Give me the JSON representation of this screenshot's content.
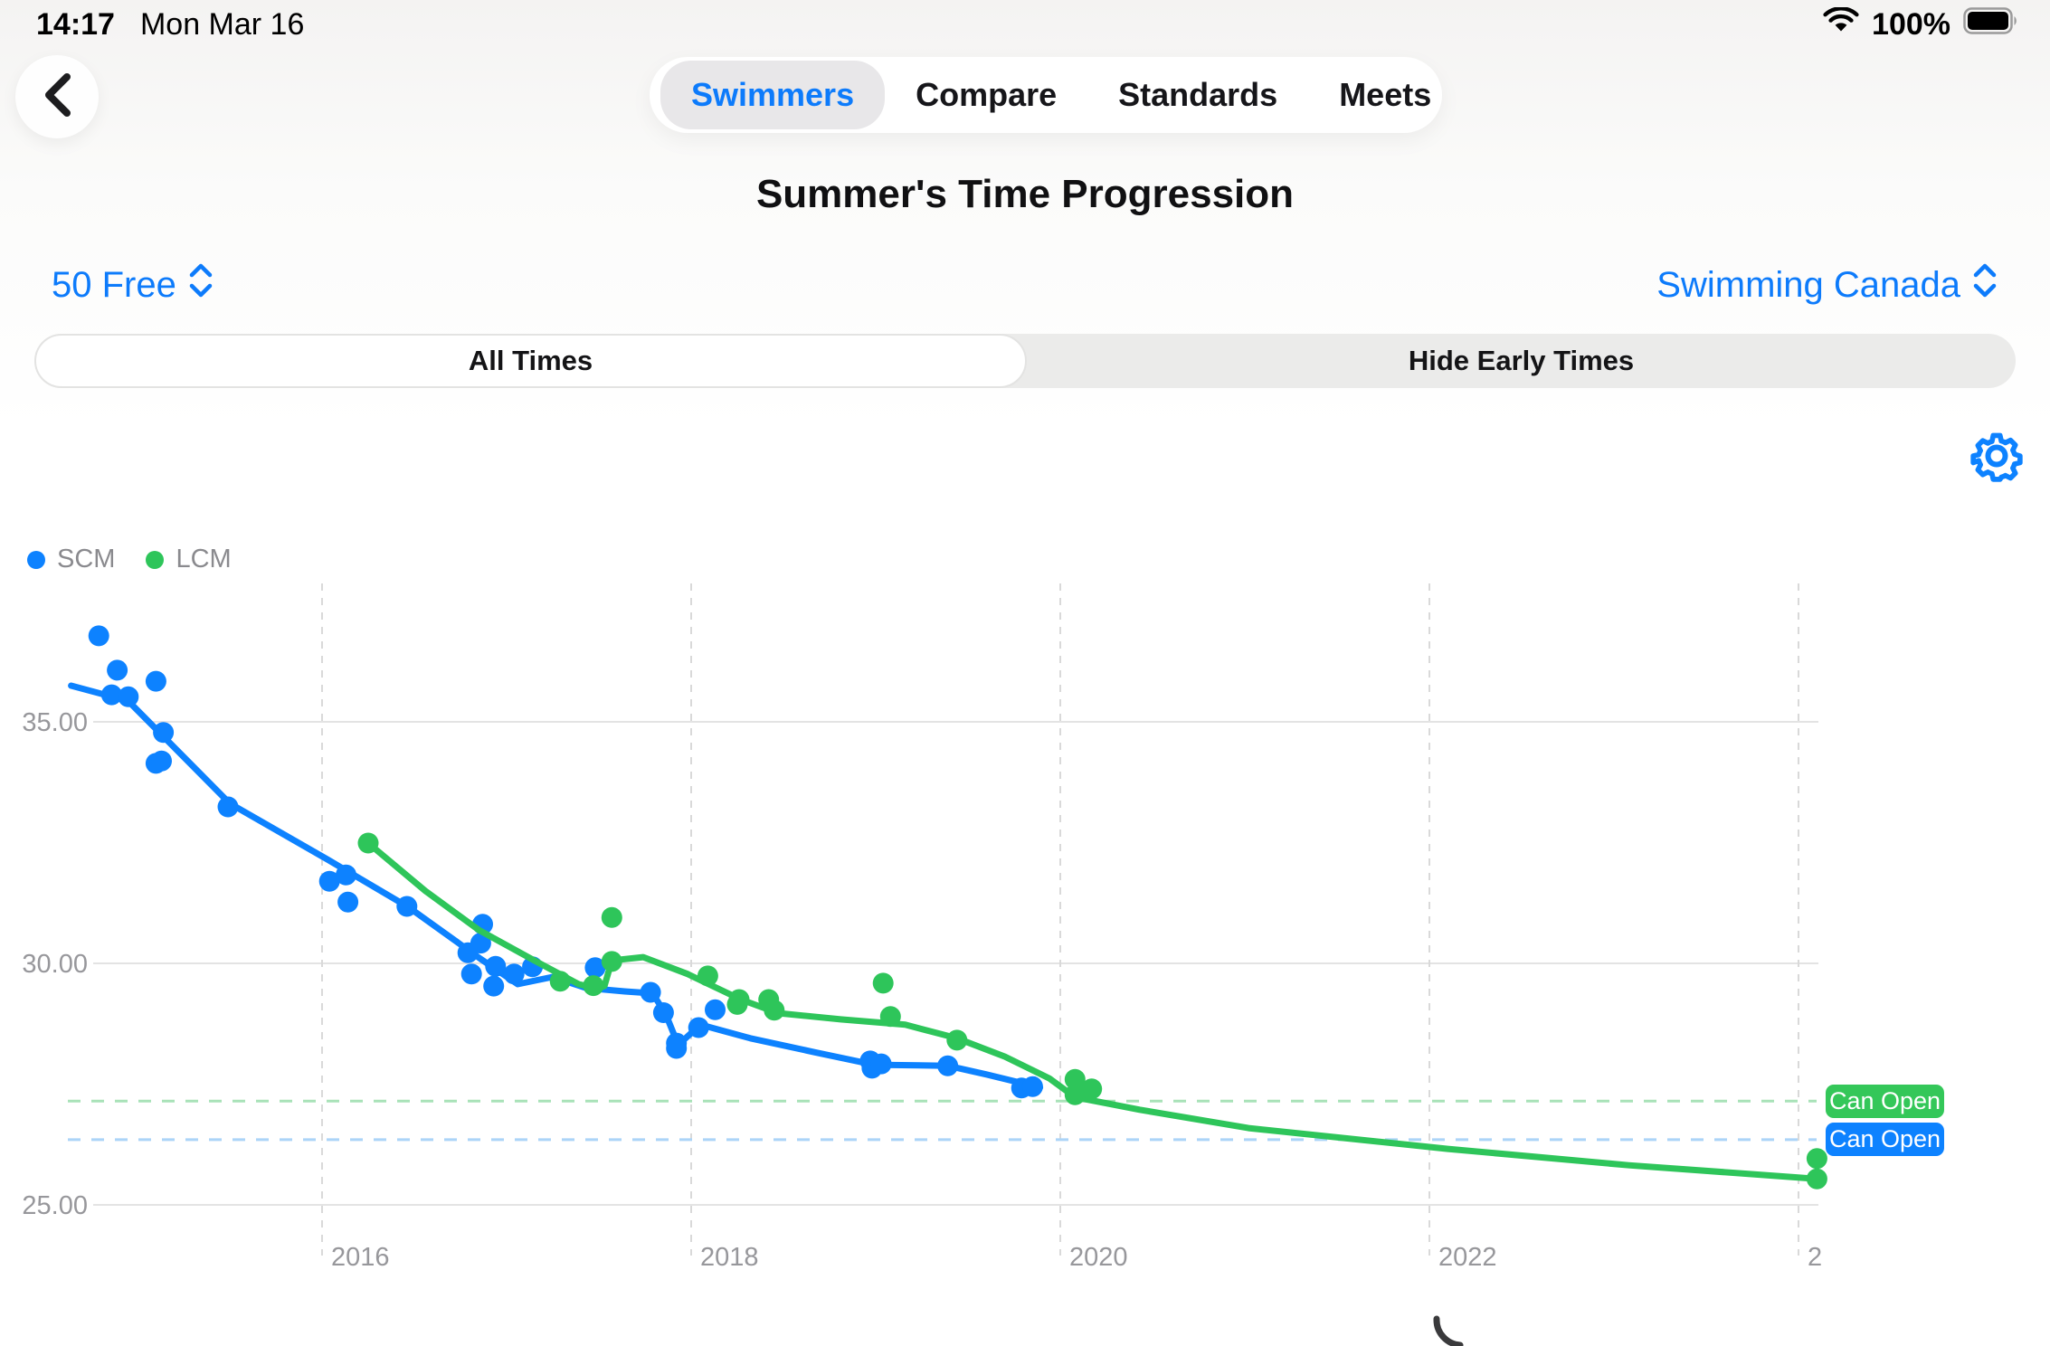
{
  "status_bar": {
    "time": "14:17",
    "date": "Mon Mar 16",
    "battery_percent": "100%"
  },
  "nav": {
    "tabs": [
      {
        "label": "Swimmers",
        "selected": true
      },
      {
        "label": "Compare",
        "selected": false
      },
      {
        "label": "Standards",
        "selected": false
      },
      {
        "label": "Meets",
        "selected": false
      }
    ]
  },
  "header": {
    "title": "Summer's Time Progression",
    "event_selector": "50 Free",
    "org_selector": "Swimming Canada"
  },
  "filter_toggle": {
    "options": [
      {
        "label": "All Times",
        "selected": true
      },
      {
        "label": "Hide Early Times",
        "selected": false
      }
    ]
  },
  "chart_data": {
    "type": "scatter",
    "title": "Summer's Time Progression",
    "legend_position": "top-left",
    "grid": true,
    "legend": [
      {
        "label": "SCM",
        "color": "#0d82ff"
      },
      {
        "label": "LCM",
        "color": "#2ec55a"
      }
    ],
    "x_ticks": {
      "values": [
        2016,
        2018,
        2020,
        2022,
        2024
      ],
      "labels": [
        "2016",
        "2018",
        "2020",
        "2022",
        "2"
      ]
    },
    "y_ticks": {
      "values": [
        35,
        30,
        25
      ],
      "labels": [
        "35.00",
        "30.00",
        "25.00"
      ]
    },
    "xlim": [
      2014.6,
      2024.35
    ],
    "ylim": [
      24.5,
      37.9
    ],
    "standards": [
      {
        "label": "Can Open",
        "value": 27.15,
        "badge_color": "#34c759",
        "line_color": "#a9e2b8"
      },
      {
        "label": "Can Open",
        "value": 26.35,
        "badge_color": "#0d82ff",
        "line_color": "#abd4f8"
      }
    ],
    "series": [
      {
        "name": "SCM",
        "color": "#0d82ff",
        "points": [
          [
            2014.79,
            36.78
          ],
          [
            2014.89,
            36.07
          ],
          [
            2014.86,
            35.56
          ],
          [
            2014.95,
            35.52
          ],
          [
            2015.1,
            35.84
          ],
          [
            2015.14,
            34.78
          ],
          [
            2015.1,
            34.14
          ],
          [
            2015.13,
            34.19
          ],
          [
            2015.49,
            33.24
          ],
          [
            2016.04,
            31.7
          ],
          [
            2016.13,
            31.83
          ],
          [
            2016.14,
            31.27
          ],
          [
            2016.46,
            31.18
          ],
          [
            2016.79,
            30.22
          ],
          [
            2016.81,
            29.78
          ],
          [
            2016.87,
            30.81
          ],
          [
            2016.86,
            30.42
          ],
          [
            2016.93,
            29.53
          ],
          [
            2016.94,
            29.94
          ],
          [
            2017.04,
            29.78
          ],
          [
            2017.14,
            29.93
          ],
          [
            2017.48,
            29.91
          ],
          [
            2017.78,
            29.4
          ],
          [
            2017.85,
            28.98
          ],
          [
            2017.92,
            28.35
          ],
          [
            2017.92,
            28.24
          ],
          [
            2018.04,
            28.67
          ],
          [
            2018.13,
            29.04
          ],
          [
            2018.97,
            27.98
          ],
          [
            2018.98,
            27.83
          ],
          [
            2019.03,
            27.92
          ],
          [
            2019.39,
            27.88
          ],
          [
            2019.79,
            27.42
          ],
          [
            2019.85,
            27.45
          ]
        ],
        "trend": [
          [
            2014.64,
            35.75
          ],
          [
            2014.95,
            35.43
          ],
          [
            2015.5,
            33.31
          ],
          [
            2016.03,
            32.15
          ],
          [
            2016.47,
            31.16
          ],
          [
            2016.86,
            30.09
          ],
          [
            2017.06,
            29.57
          ],
          [
            2017.25,
            29.72
          ],
          [
            2017.43,
            29.49
          ],
          [
            2017.64,
            29.42
          ],
          [
            2017.79,
            29.38
          ],
          [
            2017.86,
            28.97
          ],
          [
            2017.93,
            28.31
          ],
          [
            2018.05,
            28.73
          ],
          [
            2018.32,
            28.45
          ],
          [
            2018.67,
            28.16
          ],
          [
            2018.99,
            27.9
          ],
          [
            2019.39,
            27.88
          ],
          [
            2019.6,
            27.7
          ],
          [
            2019.89,
            27.43
          ]
        ]
      },
      {
        "name": "LCM",
        "color": "#2ec55a",
        "points": [
          [
            2016.25,
            32.49
          ],
          [
            2017.29,
            29.63
          ],
          [
            2017.47,
            29.54
          ],
          [
            2017.57,
            30.95
          ],
          [
            2017.57,
            30.04
          ],
          [
            2018.09,
            29.74
          ],
          [
            2018.26,
            29.25
          ],
          [
            2018.25,
            29.15
          ],
          [
            2018.42,
            29.25
          ],
          [
            2018.45,
            29.03
          ],
          [
            2019.04,
            29.59
          ],
          [
            2019.08,
            28.9
          ],
          [
            2019.44,
            28.41
          ],
          [
            2020.08,
            27.6
          ],
          [
            2020.17,
            27.4
          ],
          [
            2020.08,
            27.28
          ],
          [
            2024.1,
            25.96
          ],
          [
            2024.1,
            25.54
          ]
        ],
        "trend": [
          [
            2016.25,
            32.49
          ],
          [
            2016.56,
            31.5
          ],
          [
            2016.85,
            30.69
          ],
          [
            2017.15,
            30.06
          ],
          [
            2017.39,
            29.57
          ],
          [
            2017.49,
            29.48
          ],
          [
            2017.53,
            29.53
          ],
          [
            2017.57,
            30.06
          ],
          [
            2017.74,
            30.13
          ],
          [
            2017.98,
            29.78
          ],
          [
            2018.27,
            29.25
          ],
          [
            2018.47,
            28.97
          ],
          [
            2018.81,
            28.84
          ],
          [
            2019.16,
            28.73
          ],
          [
            2019.44,
            28.45
          ],
          [
            2019.7,
            28.07
          ],
          [
            2019.94,
            27.62
          ],
          [
            2020.08,
            27.23
          ],
          [
            2020.43,
            26.97
          ],
          [
            2021.02,
            26.59
          ],
          [
            2022.1,
            26.16
          ],
          [
            2023.08,
            25.82
          ],
          [
            2024.1,
            25.54
          ]
        ]
      }
    ]
  }
}
